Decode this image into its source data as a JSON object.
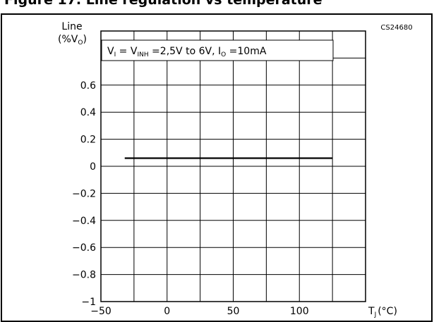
{
  "figure": {
    "title": "Figure 17. Line regulation vs temperature",
    "code": "CS24680"
  },
  "chart_data": {
    "type": "line",
    "title": "",
    "ylabel": "Line",
    "ylabel_unit_open": "(%V",
    "ylabel_unit_sub": "O",
    "ylabel_unit_close": ")",
    "xlabel_main": "T",
    "xlabel_sub": "J",
    "xlabel_unit": "(°C)",
    "xlim": [
      -50,
      150
    ],
    "ylim": [
      -1,
      1
    ],
    "grid": true,
    "x_ticks": [
      {
        "value": -50,
        "label": "−50"
      },
      {
        "value": 0,
        "label": "0"
      },
      {
        "value": 50,
        "label": "50"
      },
      {
        "value": 100,
        "label": "100"
      }
    ],
    "y_ticks": [
      {
        "value": 0.6,
        "label": "0.6"
      },
      {
        "value": 0.4,
        "label": "0.4"
      },
      {
        "value": 0.2,
        "label": "0.2"
      },
      {
        "value": 0,
        "label": "0"
      },
      {
        "value": -0.2,
        "label": "−0.2"
      },
      {
        "value": -0.4,
        "label": "−0.4"
      },
      {
        "value": -0.6,
        "label": "−0.6"
      },
      {
        "value": -0.8,
        "label": "−0.8"
      },
      {
        "value": -1,
        "label": "−1"
      }
    ],
    "condition": {
      "vi": "V",
      "vi_sub": "I",
      "eq1": " = V",
      "vinh_sub": "INH",
      "range": " =2,5V  to  6V,  I",
      "io_sub": "O",
      "io_val": " =10mA"
    },
    "series": [
      {
        "x": [
          -32,
          125
        ],
        "y": [
          0.06,
          0.06
        ]
      }
    ]
  }
}
